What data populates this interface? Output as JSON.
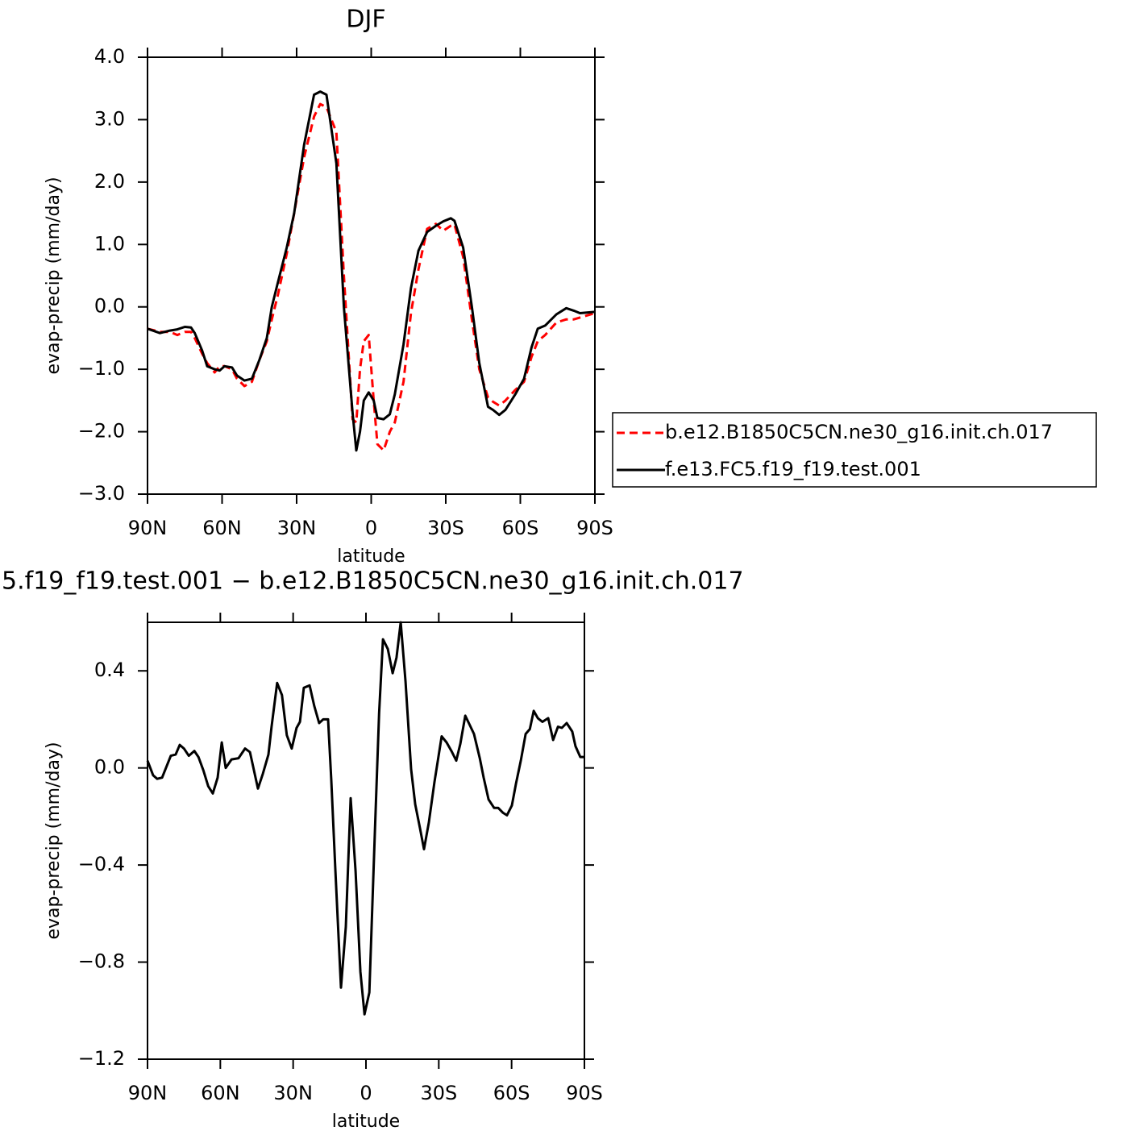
{
  "chart_data": [
    {
      "type": "line",
      "title": "DJF",
      "xlabel": "latitude",
      "ylabel": "evap-precip (mm/day)",
      "xlim": [
        90,
        -90
      ],
      "xticks": [
        {
          "value": 90,
          "label": "90N"
        },
        {
          "value": 60,
          "label": "60N"
        },
        {
          "value": 30,
          "label": "30N"
        },
        0,
        {
          "value": -30,
          "label": "30S"
        },
        {
          "value": -60,
          "label": "60S"
        },
        {
          "value": -90,
          "label": "90S"
        }
      ],
      "ylim": [
        -3,
        4
      ],
      "yticks": [
        {
          "value": 4,
          "label": "4.0"
        },
        {
          "value": 3,
          "label": "3.0"
        },
        {
          "value": 2,
          "label": "2.0"
        },
        {
          "value": 1,
          "label": "1.0"
        },
        {
          "value": 0,
          "label": "0.0"
        },
        {
          "value": -1,
          "label": "−1.0"
        },
        {
          "value": -2,
          "label": "−2.0"
        },
        {
          "value": -3,
          "label": "−3.0"
        }
      ],
      "legend_position": "right",
      "x": [
        90,
        85,
        81,
        78,
        75,
        72.5,
        71,
        68,
        66,
        63,
        61,
        59,
        56,
        54,
        51,
        48,
        45,
        42,
        40,
        37.5,
        34,
        31,
        27,
        23,
        20.5,
        18,
        14,
        11,
        7.5,
        6,
        4.5,
        3,
        1,
        -1,
        -2.5,
        -5,
        -7.5,
        -9.5,
        -13,
        -16,
        -19,
        -22.5,
        -26,
        -29,
        -32,
        -33.5,
        -37,
        -40.5,
        -43.5,
        -47,
        -49,
        -51.5,
        -54,
        -58,
        -61.5,
        -64.5,
        -67,
        -70,
        -74.5,
        -78.5,
        -81.5,
        -84,
        -90
      ],
      "series": [
        {
          "name": "b.e12.B1850C5CN.ne30_g16.init.ch.017",
          "color": "#ff0000",
          "line_style": "dashed",
          "values": [
            -0.35,
            -0.4,
            -0.4,
            -0.45,
            -0.4,
            -0.4,
            -0.5,
            -0.75,
            -0.9,
            -1.05,
            -0.95,
            -0.95,
            -1.0,
            -1.15,
            -1.27,
            -1.2,
            -0.85,
            -0.55,
            -0.2,
            0.2,
            0.85,
            1.5,
            2.4,
            3.05,
            3.25,
            3.2,
            2.8,
            0.5,
            -1.8,
            -1.85,
            -1.0,
            -0.55,
            -0.45,
            -1.5,
            -2.2,
            -2.3,
            -2.0,
            -1.85,
            -1.2,
            -0.1,
            0.6,
            1.25,
            1.33,
            1.22,
            1.3,
            1.32,
            0.8,
            -0.2,
            -1.0,
            -1.45,
            -1.52,
            -1.58,
            -1.5,
            -1.33,
            -1.2,
            -0.8,
            -0.55,
            -0.45,
            -0.25,
            -0.2,
            -0.2,
            -0.17,
            -0.1
          ]
        },
        {
          "name": "f.e13.FC5.f19_f19.test.001",
          "color": "#000000",
          "line_style": "solid",
          "values": [
            -0.35,
            -0.42,
            -0.38,
            -0.36,
            -0.32,
            -0.33,
            -0.42,
            -0.7,
            -0.95,
            -1.0,
            -1.02,
            -0.95,
            -0.97,
            -1.1,
            -1.18,
            -1.15,
            -0.85,
            -0.5,
            0.0,
            0.4,
            0.95,
            1.5,
            2.6,
            3.4,
            3.45,
            3.4,
            2.3,
            0.0,
            -1.7,
            -2.3,
            -2.0,
            -1.5,
            -1.37,
            -1.5,
            -1.78,
            -1.8,
            -1.72,
            -1.4,
            -0.6,
            0.3,
            0.9,
            1.2,
            1.3,
            1.37,
            1.42,
            1.38,
            0.95,
            0.0,
            -0.9,
            -1.6,
            -1.65,
            -1.73,
            -1.65,
            -1.4,
            -1.15,
            -0.65,
            -0.35,
            -0.3,
            -0.12,
            -0.02,
            -0.06,
            -0.1,
            -0.08
          ]
        }
      ]
    },
    {
      "type": "line",
      "title": "5.f19_f19.test.001 − b.e12.B1850C5CN.ne30_g16.init.ch.017",
      "xlabel": "latitude",
      "ylabel": "evap-precip (mm/day)",
      "xlim": [
        90,
        -90
      ],
      "xticks": [
        {
          "value": 90,
          "label": "90N"
        },
        {
          "value": 60,
          "label": "60N"
        },
        {
          "value": 30,
          "label": "30N"
        },
        0,
        {
          "value": -30,
          "label": "30S"
        },
        {
          "value": -60,
          "label": "60S"
        },
        {
          "value": -90,
          "label": "90S"
        }
      ],
      "ylim": [
        -1.2,
        0.6
      ],
      "yticks": [
        0.4,
        {
          "value": 0,
          "label": "0.0"
        },
        {
          "value": -0.4,
          "label": "−0.4"
        },
        {
          "value": -0.8,
          "label": "−0.8"
        },
        {
          "value": -1.2,
          "label": "−1.2"
        }
      ],
      "x": [
        90,
        87.7,
        86,
        84,
        80.4,
        78.4,
        76.7,
        75,
        73,
        70.7,
        69,
        67,
        65,
        63.1,
        61.1,
        59.4,
        57.8,
        55.4,
        52.5,
        49.8,
        47.8,
        44.5,
        42.5,
        40.2,
        38.9,
        36.6,
        34.6,
        32.6,
        30.6,
        28.6,
        27.2,
        25.6,
        23.2,
        21.3,
        19.3,
        17.6,
        15.6,
        14.3,
        12.6,
        10.3,
        8.3,
        6.3,
        4.3,
        2.3,
        0.6,
        -1.4,
        -3.7,
        -5.4,
        -7,
        -9,
        -11,
        -12.6,
        -14.3,
        -16.3,
        -18.6,
        -20.3,
        -22.3,
        -23.9,
        -25.9,
        -28.2,
        -31.2,
        -33.2,
        -35.2,
        -37.2,
        -38.9,
        -40.9,
        -42.6,
        -44.5,
        -46.9,
        -48.5,
        -50.5,
        -52.8,
        -54.5,
        -56.5,
        -58.1,
        -60.1,
        -61.8,
        -63.8,
        -65.8,
        -67.5,
        -69.1,
        -70.8,
        -72.7,
        -75.1,
        -77.1,
        -79.1,
        -80.7,
        -82.7,
        -85,
        -86.3,
        -88.3,
        -90
      ],
      "series": [
        {
          "color": "#000000",
          "line_style": "solid",
          "values": [
            0.03,
            -0.03,
            -0.045,
            -0.04,
            0.05,
            0.055,
            0.095,
            0.08,
            0.05,
            0.07,
            0.045,
            -0.01,
            -0.075,
            -0.105,
            -0.04,
            0.105,
            0,
            0.035,
            0.04,
            0.08,
            0.065,
            -0.085,
            -0.025,
            0.055,
            0.17,
            0.35,
            0.3,
            0.135,
            0.08,
            0.165,
            0.19,
            0.33,
            0.34,
            0.255,
            0.185,
            0.2,
            0.2,
            -0.045,
            -0.425,
            -0.905,
            -0.655,
            -0.125,
            -0.425,
            -0.84,
            -1.015,
            -0.925,
            -0.26,
            0.225,
            0.53,
            0.49,
            0.39,
            0.455,
            0.6,
            0.355,
            -0.005,
            -0.15,
            -0.25,
            -0.335,
            -0.225,
            -0.06,
            0.13,
            0.105,
            0.07,
            0.03,
            0.1,
            0.215,
            0.18,
            0.14,
            0.04,
            -0.04,
            -0.13,
            -0.165,
            -0.165,
            -0.185,
            -0.195,
            -0.155,
            -0.065,
            0.03,
            0.14,
            0.16,
            0.235,
            0.205,
            0.19,
            0.205,
            0.115,
            0.17,
            0.165,
            0.185,
            0.15,
            0.09,
            0.045,
            0.045
          ]
        }
      ]
    }
  ]
}
